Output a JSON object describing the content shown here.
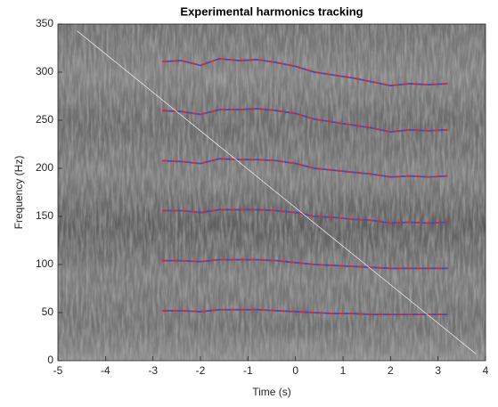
{
  "chart_data": {
    "type": "line",
    "title": "Experimental harmonics tracking",
    "xlabel": "Time (s)",
    "ylabel": "Frequency (Hz)",
    "x": [
      -2.8,
      -2.4,
      -2,
      -1.6,
      -1.2,
      -0.8,
      -0.4,
      0,
      0.4,
      0.8,
      1.2,
      1.6,
      2,
      2.4,
      2.8,
      3.2
    ],
    "series": [
      {
        "color": "#2f4fd8",
        "values": [
          311,
          312,
          307,
          314,
          312,
          313,
          310,
          306,
          300,
          297,
          294,
          290,
          286,
          288,
          287,
          288
        ]
      },
      {
        "color": "#e0282a",
        "dashed": true,
        "values": [
          311,
          312,
          307,
          314,
          312,
          313,
          310,
          306,
          300,
          297,
          294,
          290,
          286,
          288,
          287,
          288
        ]
      },
      {
        "color": "#2f4fd8",
        "values": [
          260,
          259,
          256,
          261,
          261,
          262,
          260,
          257,
          251,
          248,
          245,
          242,
          238,
          240,
          239,
          240
        ]
      },
      {
        "color": "#e0282a",
        "dashed": true,
        "values": [
          260,
          259,
          256,
          261,
          261,
          262,
          260,
          257,
          251,
          248,
          245,
          242,
          238,
          240,
          239,
          240
        ]
      },
      {
        "color": "#2f4fd8",
        "values": [
          208,
          207,
          205,
          210,
          209,
          209,
          208,
          205,
          200,
          198,
          196,
          194,
          191,
          192,
          191,
          192
        ]
      },
      {
        "color": "#e0282a",
        "dashed": true,
        "values": [
          208,
          207,
          205,
          210,
          209,
          209,
          208,
          205,
          200,
          198,
          196,
          194,
          191,
          192,
          191,
          192
        ]
      },
      {
        "color": "#2f4fd8",
        "values": [
          156,
          156,
          154,
          157,
          157,
          157,
          156,
          154,
          150,
          149,
          147,
          146,
          143,
          144,
          143,
          144
        ]
      },
      {
        "color": "#e0282a",
        "dashed": true,
        "values": [
          156,
          156,
          154,
          157,
          157,
          157,
          156,
          154,
          150,
          149,
          147,
          146,
          143,
          144,
          143,
          144
        ]
      },
      {
        "color": "#2f4fd8",
        "values": [
          104,
          104,
          103,
          105,
          105,
          105,
          104,
          102,
          100,
          99,
          98,
          97,
          96,
          96,
          96,
          96
        ]
      },
      {
        "color": "#e0282a",
        "dashed": true,
        "values": [
          104,
          104,
          103,
          105,
          105,
          105,
          104,
          102,
          100,
          99,
          98,
          97,
          96,
          96,
          96,
          96
        ]
      },
      {
        "color": "#2f4fd8",
        "values": [
          52,
          52,
          51,
          53,
          53,
          53,
          52,
          51,
          50,
          49,
          49,
          48,
          48,
          48,
          48,
          48
        ]
      },
      {
        "color": "#e0282a",
        "dashed": true,
        "values": [
          52,
          52,
          51,
          53,
          53,
          53,
          52,
          51,
          50,
          49,
          49,
          48,
          48,
          48,
          48,
          48
        ]
      },
      {
        "color": "#e6e6e6",
        "thin": true,
        "x": [
          -4.6,
          3.8
        ],
        "values": [
          343,
          7
        ]
      }
    ],
    "xlim": [
      -5,
      4
    ],
    "xticks": [
      -5,
      -4,
      -3,
      -2,
      -1,
      0,
      1,
      2,
      3,
      4
    ],
    "ylim": [
      0,
      350
    ],
    "yticks": [
      0,
      50,
      100,
      150,
      200,
      250,
      300,
      350
    ]
  }
}
